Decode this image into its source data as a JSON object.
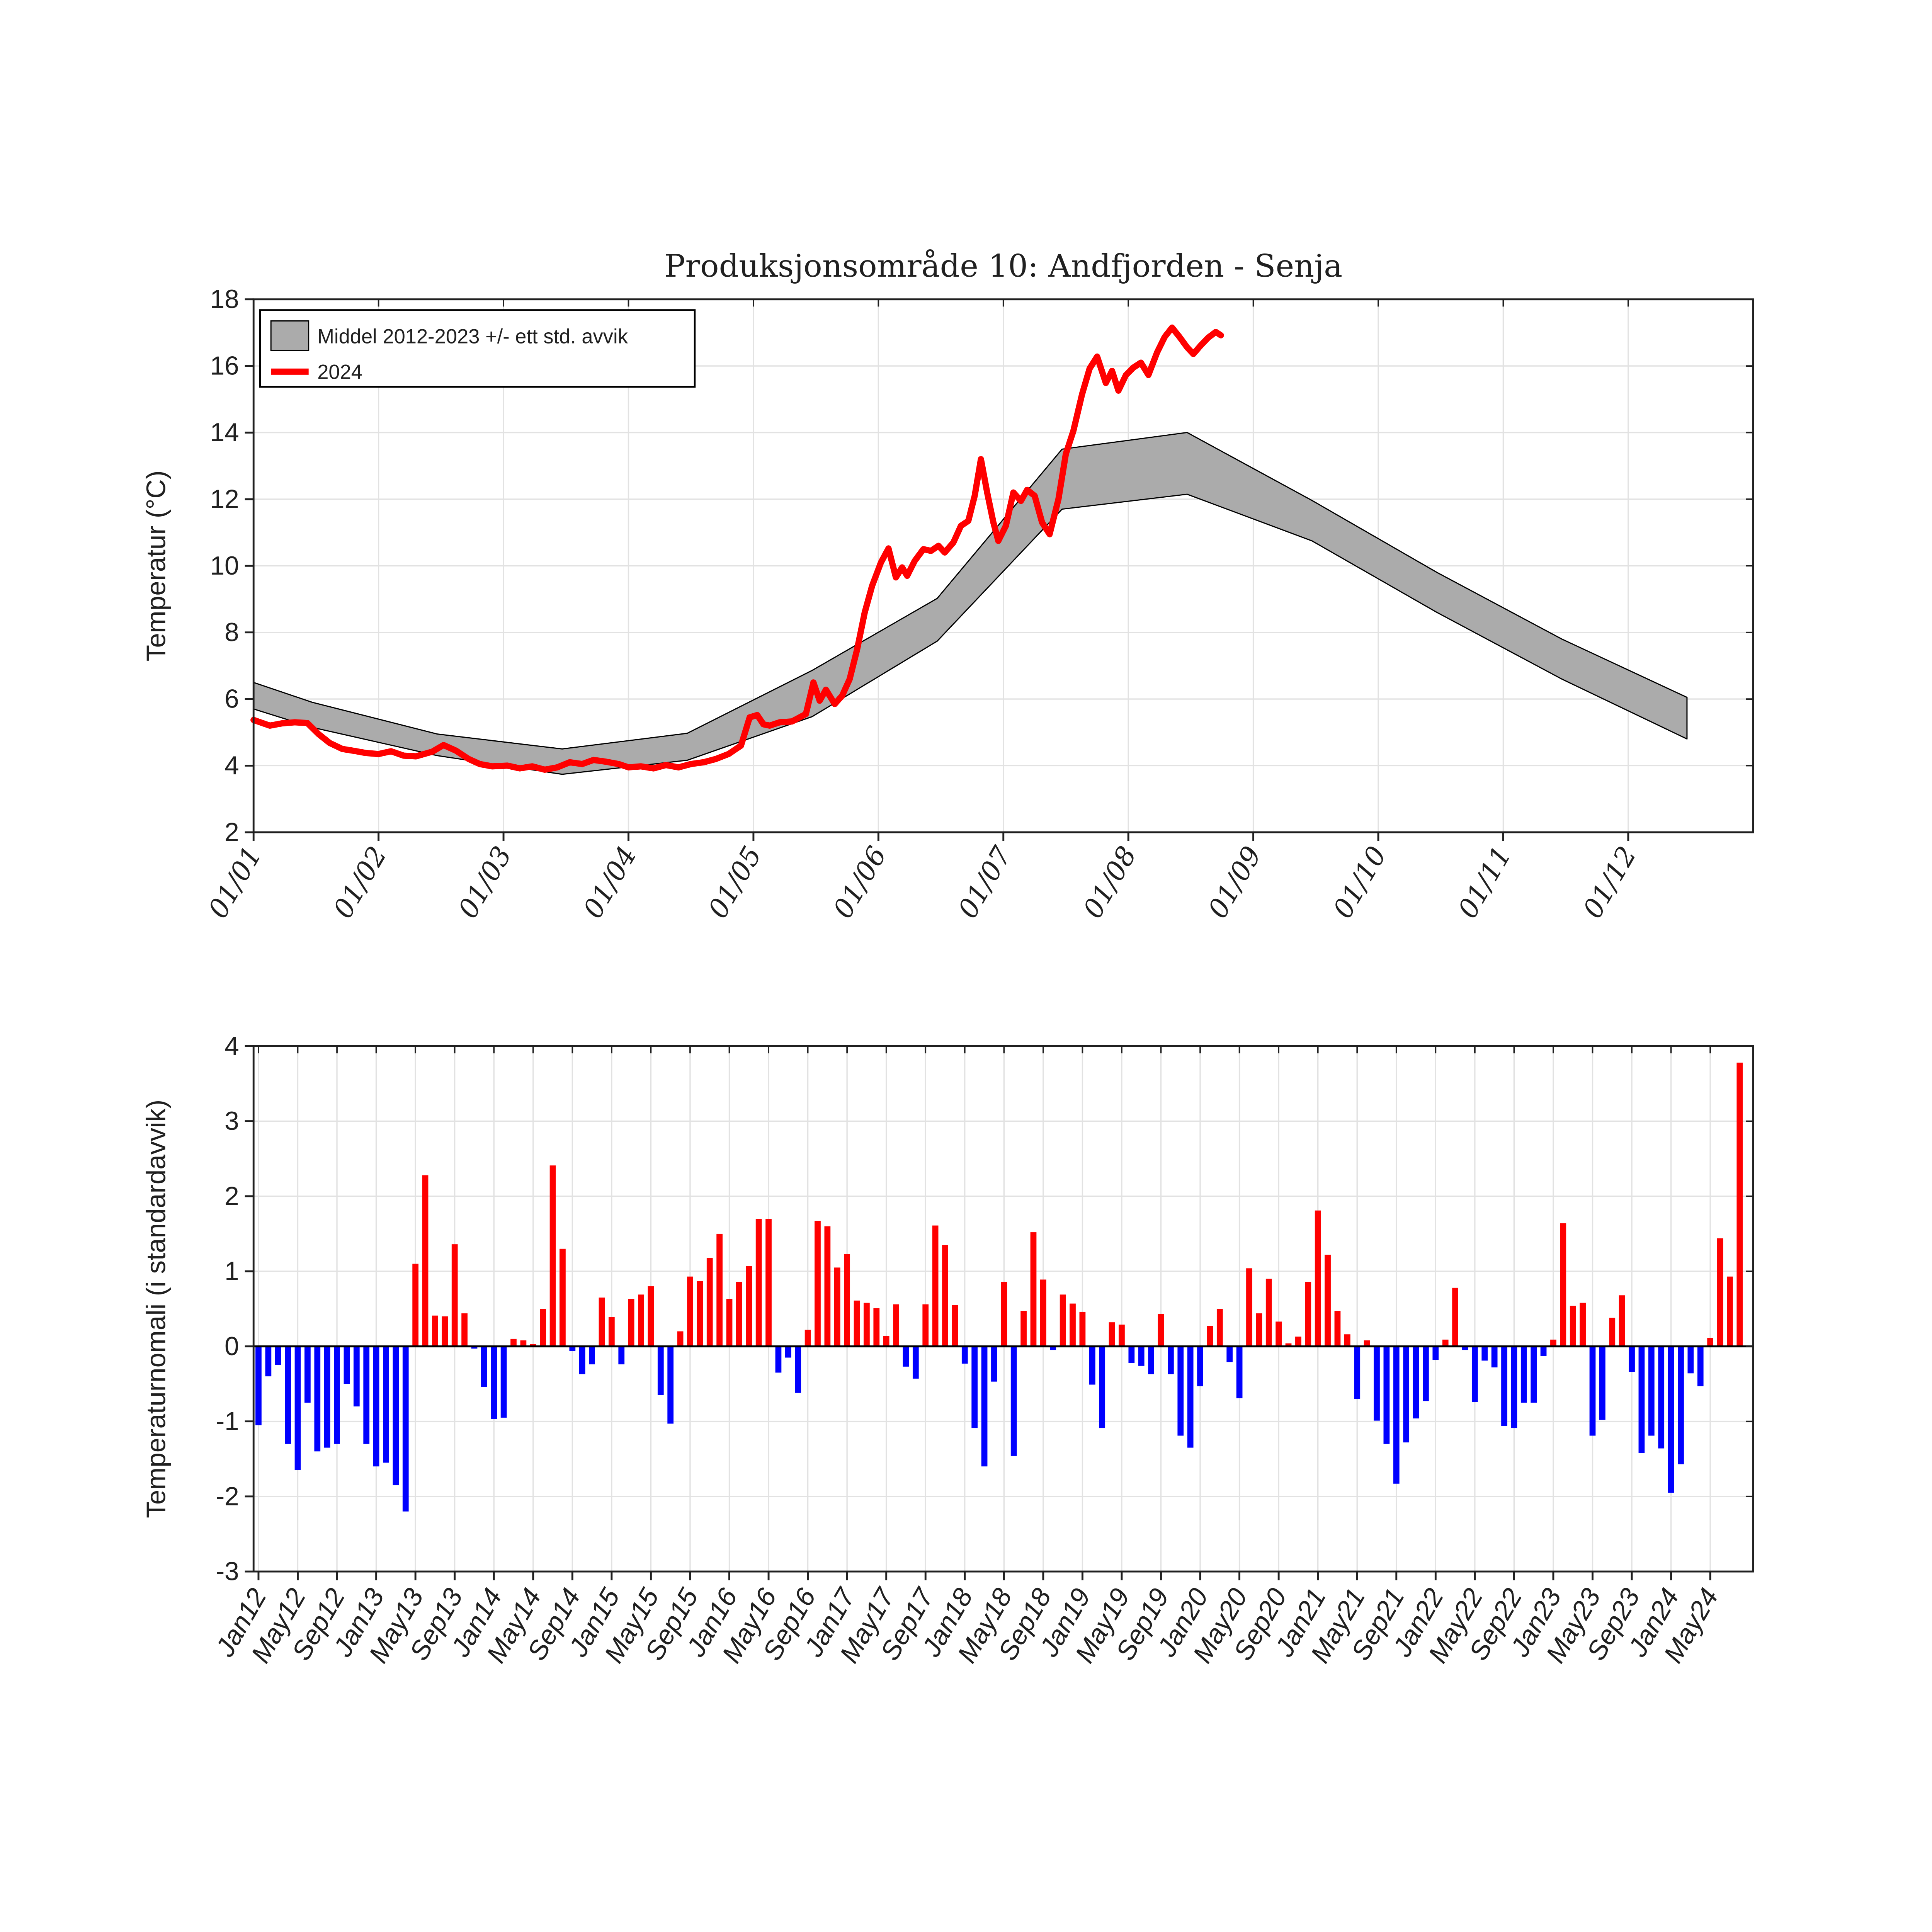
{
  "colors": {
    "red": "#ff0000",
    "blue": "#0000ff",
    "band_gray": "#ababab",
    "band_edge": "#000000",
    "grid_light": "#e2e2e2",
    "axis": "#1f1f1f",
    "tick_text": "#242424",
    "background": "#ffffff"
  },
  "chart_data": [
    {
      "type": "area+line",
      "title": "Produksjonsområde 10: Andfjorden - Senja",
      "ylabel": "Temperatur (°C)",
      "xlabel": "",
      "ylim": [
        2,
        18
      ],
      "grid": true,
      "y_ticks": [
        "2",
        "4",
        "6",
        "8",
        "10",
        "12",
        "14",
        "16",
        "18"
      ],
      "x_tick_labels": [
        "01/01",
        "01/02",
        "01/03",
        "01/04",
        "01/05",
        "01/06",
        "01/07",
        "01/08",
        "01/09",
        "01/10",
        "01/11",
        "01/12"
      ],
      "legend": [
        {
          "label": "Middel 2012-2023 +/- ett std. avvik",
          "swatch": "gray-patch"
        },
        {
          "label": "2024",
          "swatch": "red-line"
        }
      ],
      "band": {
        "name": "Middel 2012-2023 +/- ett std. avvik",
        "x_months": [
          0,
          0.47,
          1.47,
          2.47,
          3.47,
          4.47,
          5.47,
          6.47,
          7.47,
          8.47,
          9.47,
          10.47,
          11.47
        ],
        "lower": [
          5.7,
          5.15,
          4.3,
          3.74,
          4.16,
          5.47,
          7.74,
          11.7,
          12.15,
          10.75,
          8.6,
          6.6,
          4.8
        ],
        "upper": [
          6.5,
          5.9,
          4.95,
          4.5,
          4.97,
          6.86,
          9.02,
          13.5,
          14.0,
          11.96,
          9.8,
          7.8,
          6.05
        ]
      },
      "series_2024": {
        "name": "2024",
        "points": [
          [
            0.0,
            5.37
          ],
          [
            0.07,
            5.28
          ],
          [
            0.13,
            5.2
          ],
          [
            0.23,
            5.27
          ],
          [
            0.33,
            5.3
          ],
          [
            0.43,
            5.28
          ],
          [
            0.52,
            4.95
          ],
          [
            0.61,
            4.68
          ],
          [
            0.71,
            4.5
          ],
          [
            0.81,
            4.44
          ],
          [
            0.9,
            4.38
          ],
          [
            1.0,
            4.35
          ],
          [
            1.1,
            4.43
          ],
          [
            1.2,
            4.3
          ],
          [
            1.3,
            4.28
          ],
          [
            1.43,
            4.42
          ],
          [
            1.52,
            4.62
          ],
          [
            1.62,
            4.45
          ],
          [
            1.72,
            4.2
          ],
          [
            1.81,
            4.05
          ],
          [
            1.91,
            3.98
          ],
          [
            2.03,
            4.0
          ],
          [
            2.13,
            3.92
          ],
          [
            2.23,
            3.98
          ],
          [
            2.33,
            3.88
          ],
          [
            2.43,
            3.95
          ],
          [
            2.53,
            4.1
          ],
          [
            2.63,
            4.05
          ],
          [
            2.72,
            4.17
          ],
          [
            2.82,
            4.12
          ],
          [
            2.92,
            4.05
          ],
          [
            3.0,
            3.95
          ],
          [
            3.1,
            3.98
          ],
          [
            3.2,
            3.92
          ],
          [
            3.3,
            4.02
          ],
          [
            3.4,
            3.95
          ],
          [
            3.5,
            4.05
          ],
          [
            3.6,
            4.1
          ],
          [
            3.7,
            4.2
          ],
          [
            3.8,
            4.35
          ],
          [
            3.9,
            4.6
          ],
          [
            3.97,
            5.45
          ],
          [
            4.03,
            5.52
          ],
          [
            4.08,
            5.24
          ],
          [
            4.13,
            5.2
          ],
          [
            4.21,
            5.3
          ],
          [
            4.31,
            5.33
          ],
          [
            4.42,
            5.55
          ],
          [
            4.48,
            6.5
          ],
          [
            4.53,
            5.95
          ],
          [
            4.58,
            6.28
          ],
          [
            4.65,
            5.85
          ],
          [
            4.71,
            6.1
          ],
          [
            4.77,
            6.6
          ],
          [
            4.83,
            7.5
          ],
          [
            4.89,
            8.6
          ],
          [
            4.95,
            9.4
          ],
          [
            5.02,
            10.1
          ],
          [
            5.08,
            10.52
          ],
          [
            5.14,
            9.65
          ],
          [
            5.19,
            9.95
          ],
          [
            5.23,
            9.7
          ],
          [
            5.29,
            10.15
          ],
          [
            5.36,
            10.5
          ],
          [
            5.42,
            10.45
          ],
          [
            5.48,
            10.6
          ],
          [
            5.53,
            10.4
          ],
          [
            5.6,
            10.7
          ],
          [
            5.66,
            11.2
          ],
          [
            5.72,
            11.35
          ],
          [
            5.77,
            12.1
          ],
          [
            5.82,
            13.2
          ],
          [
            5.87,
            12.2
          ],
          [
            5.92,
            11.3
          ],
          [
            5.96,
            10.75
          ],
          [
            6.02,
            11.2
          ],
          [
            6.08,
            12.2
          ],
          [
            6.14,
            11.95
          ],
          [
            6.19,
            12.28
          ],
          [
            6.25,
            12.1
          ],
          [
            6.31,
            11.3
          ],
          [
            6.37,
            10.95
          ],
          [
            6.44,
            12.0
          ],
          [
            6.5,
            13.36
          ],
          [
            6.56,
            14.05
          ],
          [
            6.63,
            15.15
          ],
          [
            6.69,
            15.92
          ],
          [
            6.75,
            16.28
          ],
          [
            6.82,
            15.49
          ],
          [
            6.87,
            15.85
          ],
          [
            6.92,
            15.26
          ],
          [
            6.98,
            15.72
          ],
          [
            7.04,
            15.95
          ],
          [
            7.1,
            16.1
          ],
          [
            7.16,
            15.73
          ],
          [
            7.23,
            16.41
          ],
          [
            7.29,
            16.87
          ],
          [
            7.35,
            17.15
          ],
          [
            7.41,
            16.87
          ],
          [
            7.47,
            16.56
          ],
          [
            7.52,
            16.36
          ],
          [
            7.58,
            16.62
          ],
          [
            7.64,
            16.85
          ],
          [
            7.7,
            17.02
          ],
          [
            7.74,
            16.92
          ]
        ]
      }
    },
    {
      "type": "bar",
      "title": "",
      "ylabel": "Temperaturnomali (i standardavvik)",
      "xlabel": "",
      "ylim": [
        -3,
        4
      ],
      "grid": true,
      "y_ticks": [
        "-3",
        "-2",
        "-1",
        "0",
        "1",
        "2",
        "3",
        "4"
      ],
      "x_tick_labels": [
        "Jan12",
        "May12",
        "Sep12",
        "Jan13",
        "May13",
        "Sep13",
        "Jan14",
        "May14",
        "Sep14",
        "Jan15",
        "May15",
        "Sep15",
        "Jan16",
        "May16",
        "Sep16",
        "Jan17",
        "May17",
        "Sep17",
        "Jan18",
        "May18",
        "Sep18",
        "Jan19",
        "May19",
        "Sep19",
        "Jan20",
        "May20",
        "Sep20",
        "Jan21",
        "May21",
        "Sep21",
        "Jan22",
        "May22",
        "Sep22",
        "Jan23",
        "May23",
        "Sep23",
        "Jan24",
        "May24"
      ],
      "x_tick_every_n_bars": 4,
      "start_month": "Jan 2012",
      "end_month": "Aug 2024",
      "positive_color": "#ff0000",
      "negative_color": "#0000ff",
      "values": [
        -1.05,
        -0.4,
        -0.25,
        -1.3,
        -1.65,
        -0.75,
        -1.4,
        -1.35,
        -1.3,
        -0.5,
        -0.8,
        -1.3,
        -1.6,
        -1.55,
        -1.85,
        -2.2,
        1.1,
        2.28,
        0.41,
        0.4,
        1.36,
        0.44,
        -0.03,
        -0.54,
        -0.97,
        -0.95,
        0.1,
        0.08,
        0.03,
        0.5,
        2.41,
        1.3,
        -0.06,
        -0.37,
        -0.24,
        0.65,
        0.39,
        -0.24,
        0.63,
        0.69,
        0.8,
        -0.65,
        -1.03,
        0.2,
        0.93,
        0.87,
        1.18,
        1.5,
        0.63,
        0.86,
        1.07,
        1.7,
        1.7,
        -0.35,
        -0.15,
        -0.62,
        0.22,
        1.67,
        1.6,
        1.05,
        1.23,
        0.61,
        0.58,
        0.51,
        0.14,
        0.56,
        -0.27,
        -0.43,
        0.56,
        1.61,
        1.35,
        0.55,
        -0.23,
        -1.09,
        -1.6,
        -0.47,
        0.86,
        -1.46,
        0.47,
        1.52,
        0.89,
        -0.05,
        0.69,
        0.57,
        0.46,
        -0.51,
        -1.09,
        0.32,
        0.29,
        -0.22,
        -0.26,
        -0.37,
        0.43,
        -0.37,
        -1.19,
        -1.35,
        -0.53,
        0.27,
        0.5,
        -0.21,
        -0.69,
        1.04,
        0.44,
        0.9,
        0.33,
        0.04,
        0.13,
        0.86,
        1.81,
        1.22,
        0.47,
        0.16,
        -0.7,
        0.08,
        -0.99,
        -1.3,
        -1.83,
        -1.28,
        -0.96,
        -0.73,
        -0.18,
        0.09,
        0.78,
        -0.05,
        -0.74,
        -0.19,
        -0.28,
        -1.06,
        -1.09,
        -0.75,
        -0.75,
        -0.13,
        0.09,
        1.64,
        0.54,
        0.58,
        -1.19,
        -0.98,
        0.38,
        0.68,
        -0.34,
        -1.42,
        -1.19,
        -1.36,
        -1.95,
        -1.57,
        -0.36,
        -0.53,
        0.11,
        1.44,
        0.93,
        3.78
      ]
    }
  ]
}
